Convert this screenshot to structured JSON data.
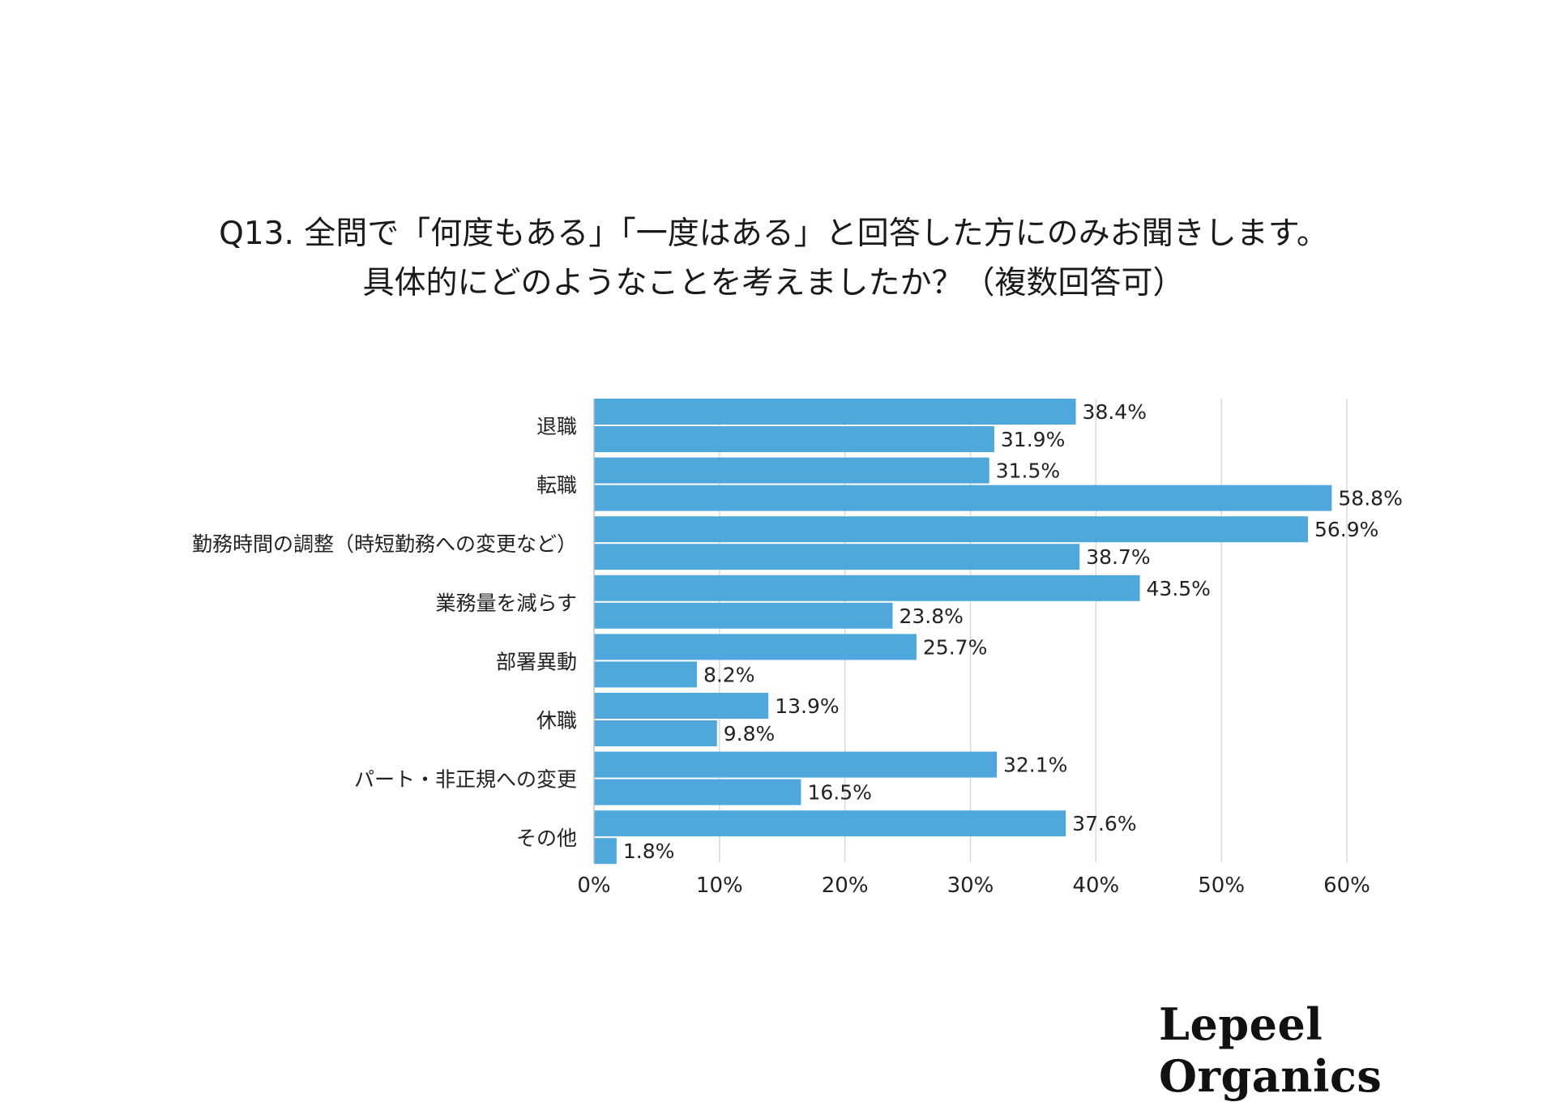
{
  "chart_data": {
    "type": "bar",
    "orientation": "horizontal",
    "title_lines": [
      "Q13. 全問で「何度もある」「一度はある」と回答した方にのみお聞きします。",
      "具体的にどのようなことを考えましたか？（複数回答可）"
    ],
    "categories": [
      "退職",
      "転職",
      "勤務時間の調整（時短勤務への変更など）",
      "業務量を減らす",
      "部署異動",
      "休職",
      "パート・非正規への変更",
      "その他"
    ],
    "series": [
      {
        "values": [
          38.4,
          31.5,
          56.9,
          43.5,
          25.7,
          13.9,
          32.1,
          37.6
        ]
      },
      {
        "values": [
          31.9,
          58.8,
          38.7,
          23.8,
          8.2,
          9.8,
          16.5,
          1.8
        ]
      }
    ],
    "data_labels": [
      [
        "38.4%",
        "31.5%",
        "56.9%",
        "43.5%",
        "25.7%",
        "13.9%",
        "32.1%",
        "37.6%"
      ],
      [
        "31.9%",
        "58.8%",
        "38.7%",
        "23.8%",
        "8.2%",
        "9.8%",
        "16.5%",
        "1.8%"
      ]
    ],
    "xlim": [
      0,
      60
    ],
    "x_ticks": [
      "0%",
      "10%",
      "20%",
      "30%",
      "40%",
      "50%",
      "60%"
    ],
    "grid": "vertical",
    "legend": "none",
    "bar_color": "#4fa8dc",
    "grid_color": "#d9d9d9"
  },
  "logo": "Lepeel Organics"
}
